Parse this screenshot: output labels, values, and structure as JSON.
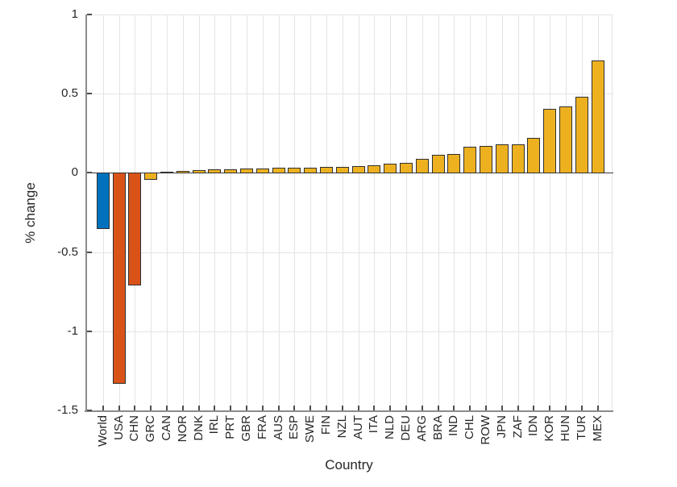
{
  "chart_data": {
    "type": "bar",
    "title": "",
    "xlabel": "Country",
    "ylabel": "% change",
    "categories": [
      "World",
      "USA",
      "CHN",
      "GRC",
      "CAN",
      "NOR",
      "DNK",
      "IRL",
      "PRT",
      "GBR",
      "FRA",
      "AUS",
      "ESP",
      "SWE",
      "FIN",
      "NZL",
      "AUT",
      "ITA",
      "NLD",
      "DEU",
      "ARG",
      "BRA",
      "IND",
      "CHL",
      "ROW",
      "JPN",
      "ZAF",
      "IDN",
      "KOR",
      "HUN",
      "TUR",
      "MEX"
    ],
    "values": [
      -0.35,
      -1.33,
      -0.71,
      -0.04,
      0.005,
      0.01,
      0.014,
      0.018,
      0.021,
      0.024,
      0.027,
      0.029,
      0.03,
      0.032,
      0.035,
      0.037,
      0.043,
      0.048,
      0.058,
      0.06,
      0.085,
      0.112,
      0.118,
      0.165,
      0.17,
      0.178,
      0.18,
      0.22,
      0.4,
      0.415,
      0.48,
      0.71
    ],
    "bar_colors": [
      "#0072BD",
      "#D95319",
      "#D95319",
      "#EDB120",
      "#EDB120",
      "#EDB120",
      "#EDB120",
      "#EDB120",
      "#EDB120",
      "#EDB120",
      "#EDB120",
      "#EDB120",
      "#EDB120",
      "#EDB120",
      "#EDB120",
      "#EDB120",
      "#EDB120",
      "#EDB120",
      "#EDB120",
      "#EDB120",
      "#EDB120",
      "#EDB120",
      "#EDB120",
      "#EDB120",
      "#EDB120",
      "#EDB120",
      "#EDB120",
      "#EDB120",
      "#EDB120",
      "#EDB120",
      "#EDB120",
      "#EDB120"
    ],
    "palette": {
      "blue": "#0072BD",
      "orange": "#D95319",
      "yellow": "#EDB120"
    },
    "ylim": [
      -1.5,
      1
    ],
    "yticks": [
      1,
      0.5,
      0,
      -0.5,
      -1,
      -1.5
    ],
    "ytick_labels": [
      "1",
      "0.5",
      "0",
      "-0.5",
      "-1",
      "-1.5"
    ],
    "grid": "on",
    "legend": "none",
    "bar_edge_color": "#2f2f2f",
    "grid_color": "#e4e4e4",
    "axis_color": "#8a8a8a",
    "tick_color": "#4d4d4d",
    "text_color": "#262626"
  }
}
